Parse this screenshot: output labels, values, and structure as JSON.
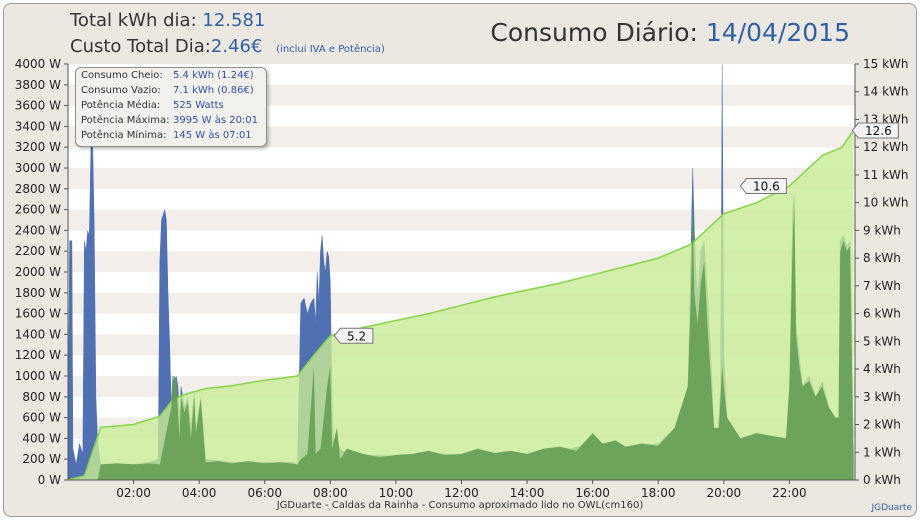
{
  "header": {
    "total_label": "Total kWh dia:",
    "total_value": "12.581",
    "cost_label": "Custo Total Dia:",
    "cost_value": "2.46€",
    "cost_note": "(inclui IVA e Potência)",
    "title_prefix": "Consumo Diário:",
    "title_date": "14/04/2015"
  },
  "tooltip": {
    "rows": [
      {
        "label": "Consumo Cheio:",
        "value": "5.4 kWh (1.24€)"
      },
      {
        "label": "Consumo Vazio:",
        "value": "7.1 kWh (0.86€)"
      },
      {
        "label": "Potência Média:",
        "value": "525 Watts"
      },
      {
        "label": "Potência Máxima:",
        "value": "3995 W às 20:01"
      },
      {
        "label": "Potência Mínima:",
        "value": "145 W às 07:01"
      }
    ]
  },
  "footer": {
    "text": "JGDuarte  -  Caldas da Rainha  -  Consumo aproximado lido no OWL(cm160)",
    "credit": "JGDuarte"
  },
  "colors": {
    "frame_bg": "#ebe8e2",
    "plot_band_a": "#f2efea",
    "plot_band_b": "#ffffff",
    "power_vazio": "#4f71b3",
    "power_cheio": "#5e9a52",
    "energy_fill": "#c8ec96",
    "energy_line": "#86d448",
    "value_text": "#3060a8",
    "title_text": "#333333"
  },
  "chart_data": {
    "type": "area",
    "x_axis": {
      "range_hours": [
        0,
        24
      ],
      "tick_labels": [
        "02:00",
        "04:00",
        "06:00",
        "08:00",
        "10:00",
        "12:00",
        "14:00",
        "16:00",
        "18:00",
        "20:00",
        "22:00"
      ],
      "tick_hours": [
        2,
        4,
        6,
        8,
        10,
        12,
        14,
        16,
        18,
        20,
        22
      ]
    },
    "y_left": {
      "unit": "W",
      "range": [
        0,
        4000
      ],
      "tick_labels": [
        "0 W",
        "200 W",
        "400 W",
        "600 W",
        "800 W",
        "1000 W",
        "1200 W",
        "1400 W",
        "1600 W",
        "1800 W",
        "2000 W",
        "2200 W",
        "2400 W",
        "2600 W",
        "2800 W",
        "3000 W",
        "3200 W",
        "3400 W",
        "3600 W",
        "3800 W",
        "4000 W"
      ]
    },
    "y_right": {
      "unit": "kWh",
      "range": [
        0,
        15
      ],
      "tick_labels": [
        "0 kWh",
        "1 kWh",
        "2 kWh",
        "3 kWh",
        "4 kWh",
        "5 kWh",
        "6 kWh",
        "7 kWh",
        "8 kWh",
        "9 kWh",
        "10 kWh",
        "11 kWh",
        "12 kWh",
        "13 kWh",
        "14 kWh",
        "15 kWh"
      ]
    },
    "series": [
      {
        "type": "area",
        "axis": "left",
        "color": "#4f71b3",
        "points": [
          [
            0.0,
            180
          ],
          [
            0.05,
            2300
          ],
          [
            0.12,
            2300
          ],
          [
            0.15,
            300
          ],
          [
            0.25,
            150
          ],
          [
            0.35,
            350
          ],
          [
            0.45,
            250
          ],
          [
            0.5,
            2300
          ],
          [
            0.55,
            2200
          ],
          [
            0.6,
            2400
          ],
          [
            0.65,
            2350
          ],
          [
            0.7,
            3250
          ],
          [
            0.75,
            3300
          ],
          [
            0.8,
            2450
          ],
          [
            0.85,
            800
          ],
          [
            0.9,
            400
          ],
          [
            0.95,
            250
          ],
          [
            1.0,
            150
          ],
          [
            1.5,
            150
          ],
          [
            2.0,
            150
          ],
          [
            2.5,
            170
          ],
          [
            2.75,
            200
          ],
          [
            2.8,
            2100
          ],
          [
            2.85,
            2500
          ],
          [
            2.95,
            2600
          ],
          [
            3.0,
            2500
          ],
          [
            3.05,
            1800
          ],
          [
            3.1,
            1300
          ],
          [
            3.15,
            700
          ],
          [
            3.2,
            1000
          ],
          [
            3.25,
            850
          ],
          [
            3.3,
            1000
          ],
          [
            3.35,
            900
          ],
          [
            3.4,
            600
          ],
          [
            3.45,
            900
          ],
          [
            3.55,
            700
          ],
          [
            3.65,
            800
          ],
          [
            3.75,
            500
          ],
          [
            3.85,
            850
          ],
          [
            3.9,
            500
          ],
          [
            4.05,
            800
          ],
          [
            4.15,
            400
          ],
          [
            4.2,
            200
          ],
          [
            5.0,
            170
          ],
          [
            6.0,
            170
          ],
          [
            6.9,
            170
          ],
          [
            7.0,
            150
          ],
          [
            7.1,
            1700
          ],
          [
            7.2,
            1750
          ],
          [
            7.3,
            1600
          ],
          [
            7.4,
            1700
          ],
          [
            7.5,
            1750
          ],
          [
            7.55,
            1500
          ],
          [
            7.6,
            2000
          ],
          [
            7.65,
            1700
          ],
          [
            7.7,
            2200
          ],
          [
            7.75,
            2350
          ],
          [
            7.8,
            2100
          ],
          [
            7.85,
            2000
          ],
          [
            7.9,
            2200
          ],
          [
            7.95,
            2150
          ],
          [
            8.0,
            1900
          ],
          [
            8.05,
            800
          ],
          [
            8.1,
            300
          ],
          [
            8.2,
            400
          ],
          [
            8.3,
            300
          ],
          [
            8.5,
            250
          ],
          [
            9.0,
            240
          ],
          [
            10.0,
            230
          ],
          [
            11.0,
            260
          ],
          [
            12.0,
            240
          ],
          [
            13.0,
            260
          ],
          [
            14.0,
            250
          ],
          [
            15.0,
            280
          ],
          [
            16.0,
            350
          ],
          [
            17.0,
            320
          ],
          [
            18.0,
            350
          ],
          [
            18.5,
            500
          ],
          [
            18.9,
            800
          ],
          [
            19.0,
            2200
          ],
          [
            19.05,
            3000
          ],
          [
            19.1,
            2400
          ],
          [
            19.15,
            2000
          ],
          [
            19.2,
            1800
          ],
          [
            19.3,
            2200
          ],
          [
            19.4,
            2300
          ],
          [
            19.5,
            1800
          ],
          [
            19.6,
            1200
          ],
          [
            19.7,
            500
          ],
          [
            19.8,
            400
          ],
          [
            19.85,
            600
          ],
          [
            19.9,
            900
          ],
          [
            19.95,
            3995
          ],
          [
            20.0,
            1200
          ],
          [
            20.1,
            600
          ],
          [
            20.3,
            500
          ],
          [
            20.5,
            400
          ],
          [
            21.0,
            450
          ],
          [
            21.5,
            420
          ],
          [
            21.9,
            400
          ],
          [
            22.0,
            900
          ],
          [
            22.1,
            2600
          ],
          [
            22.15,
            2750
          ],
          [
            22.2,
            1500
          ],
          [
            22.3,
            1200
          ],
          [
            22.4,
            900
          ],
          [
            22.6,
            1000
          ],
          [
            22.8,
            800
          ],
          [
            23.0,
            950
          ],
          [
            23.2,
            700
          ],
          [
            23.4,
            600
          ],
          [
            23.5,
            600
          ],
          [
            23.55,
            2300
          ],
          [
            23.65,
            2350
          ],
          [
            23.75,
            2250
          ],
          [
            23.85,
            2300
          ],
          [
            23.95,
            300
          ]
        ]
      },
      {
        "type": "area",
        "axis": "left",
        "color": "#5e9a52",
        "points": [
          [
            0.0,
            0
          ],
          [
            0.9,
            0
          ],
          [
            1.0,
            150
          ],
          [
            1.5,
            160
          ],
          [
            2.0,
            150
          ],
          [
            2.5,
            160
          ],
          [
            2.8,
            150
          ],
          [
            3.15,
            700
          ],
          [
            3.2,
            900
          ],
          [
            3.25,
            1000
          ],
          [
            3.3,
            950
          ],
          [
            3.4,
            400
          ],
          [
            3.45,
            800
          ],
          [
            3.55,
            650
          ],
          [
            3.65,
            750
          ],
          [
            3.75,
            400
          ],
          [
            3.85,
            800
          ],
          [
            3.9,
            450
          ],
          [
            4.05,
            780
          ],
          [
            4.15,
            350
          ],
          [
            4.2,
            170
          ],
          [
            4.6,
            180
          ],
          [
            5.0,
            160
          ],
          [
            5.5,
            180
          ],
          [
            6.0,
            160
          ],
          [
            6.5,
            170
          ],
          [
            7.0,
            150
          ],
          [
            7.1,
            200
          ],
          [
            7.3,
            250
          ],
          [
            7.5,
            1100
          ],
          [
            7.55,
            250
          ],
          [
            7.7,
            300
          ],
          [
            7.9,
            900
          ],
          [
            8.0,
            1100
          ],
          [
            8.05,
            300
          ],
          [
            8.2,
            500
          ],
          [
            8.3,
            200
          ],
          [
            8.5,
            300
          ],
          [
            9.0,
            250
          ],
          [
            9.5,
            220
          ],
          [
            10.0,
            240
          ],
          [
            10.5,
            250
          ],
          [
            11.0,
            280
          ],
          [
            11.5,
            240
          ],
          [
            12.0,
            250
          ],
          [
            12.5,
            300
          ],
          [
            13.0,
            260
          ],
          [
            13.5,
            280
          ],
          [
            14.0,
            250
          ],
          [
            14.5,
            300
          ],
          [
            15.0,
            320
          ],
          [
            15.5,
            280
          ],
          [
            16.0,
            450
          ],
          [
            16.3,
            350
          ],
          [
            16.7,
            380
          ],
          [
            17.0,
            320
          ],
          [
            17.5,
            350
          ],
          [
            18.0,
            330
          ],
          [
            18.5,
            500
          ],
          [
            18.9,
            900
          ],
          [
            19.0,
            1800
          ],
          [
            19.05,
            2600
          ],
          [
            19.1,
            1800
          ],
          [
            19.2,
            1500
          ],
          [
            19.3,
            1900
          ],
          [
            19.4,
            2100
          ],
          [
            19.5,
            1500
          ],
          [
            19.6,
            1000
          ],
          [
            19.7,
            500
          ],
          [
            19.85,
            500
          ],
          [
            19.9,
            800
          ],
          [
            19.95,
            1100
          ],
          [
            20.0,
            900
          ],
          [
            20.1,
            600
          ],
          [
            20.3,
            500
          ],
          [
            20.5,
            400
          ],
          [
            21.0,
            450
          ],
          [
            21.5,
            420
          ],
          [
            21.9,
            400
          ],
          [
            22.0,
            900
          ],
          [
            22.1,
            2300
          ],
          [
            22.15,
            2650
          ],
          [
            22.2,
            1400
          ],
          [
            22.3,
            1100
          ],
          [
            22.4,
            900
          ],
          [
            22.6,
            950
          ],
          [
            22.8,
            800
          ],
          [
            23.0,
            900
          ],
          [
            23.2,
            700
          ],
          [
            23.4,
            600
          ],
          [
            23.5,
            600
          ],
          [
            23.55,
            2200
          ],
          [
            23.65,
            2300
          ],
          [
            23.75,
            2200
          ],
          [
            23.85,
            2250
          ],
          [
            23.95,
            250
          ]
        ]
      },
      {
        "type": "area",
        "axis": "right",
        "color": "#c8ec96",
        "points": [
          [
            0.0,
            0
          ],
          [
            0.5,
            0.15
          ],
          [
            1.0,
            1.9
          ],
          [
            2.0,
            2.0
          ],
          [
            2.8,
            2.3
          ],
          [
            3.2,
            2.9
          ],
          [
            3.6,
            3.1
          ],
          [
            4.2,
            3.3
          ],
          [
            5.0,
            3.4
          ],
          [
            6.0,
            3.6
          ],
          [
            7.0,
            3.75
          ],
          [
            7.5,
            4.5
          ],
          [
            8.0,
            5.2
          ],
          [
            9.0,
            5.5
          ],
          [
            10.0,
            5.75
          ],
          [
            11.0,
            6.0
          ],
          [
            12.0,
            6.3
          ],
          [
            13.0,
            6.6
          ],
          [
            14.0,
            6.85
          ],
          [
            15.0,
            7.1
          ],
          [
            16.0,
            7.4
          ],
          [
            17.0,
            7.7
          ],
          [
            18.0,
            8.0
          ],
          [
            19.0,
            8.5
          ],
          [
            20.0,
            9.6
          ],
          [
            21.0,
            10.0
          ],
          [
            22.0,
            10.6
          ],
          [
            23.0,
            11.7
          ],
          [
            23.6,
            12.0
          ],
          [
            23.95,
            12.6
          ]
        ]
      }
    ],
    "annotations": [
      {
        "x": 8.0,
        "y": 5.2,
        "label": "5.2"
      },
      {
        "x": 22.0,
        "y": 10.6,
        "label": "10.6"
      },
      {
        "x": 23.95,
        "y": 12.6,
        "label": "12.6"
      }
    ],
    "grid": "alternating horizontal bands",
    "legend": "none"
  }
}
